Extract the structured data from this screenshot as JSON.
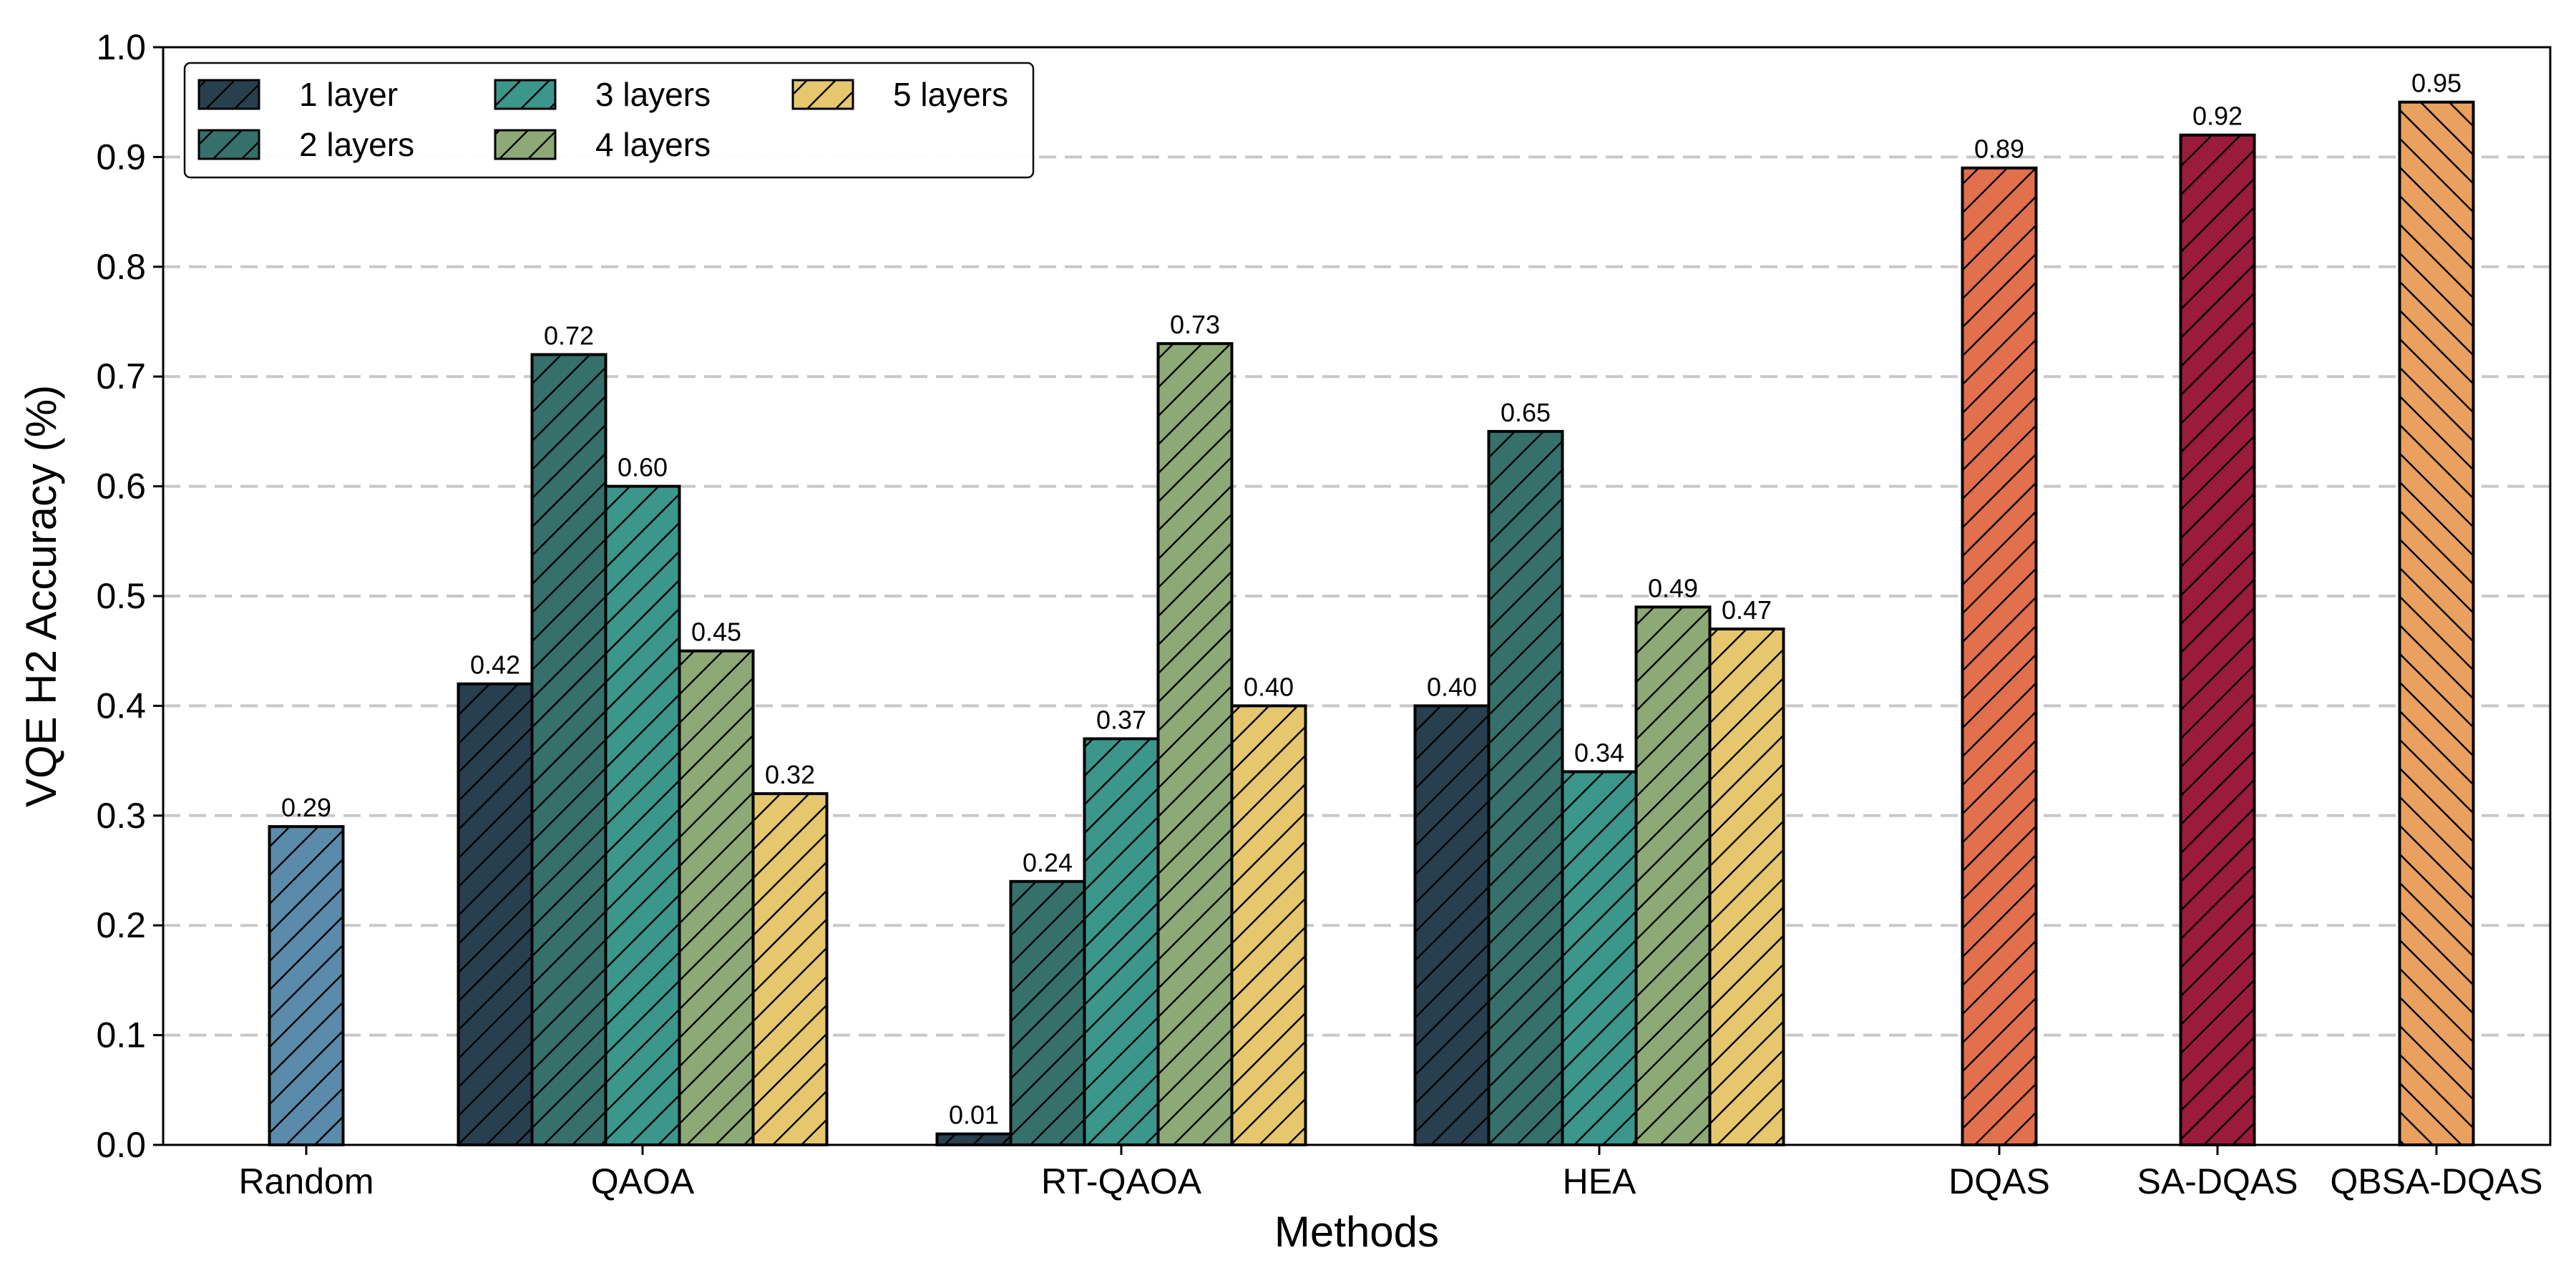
{
  "chart_data": {
    "type": "bar",
    "title": "",
    "xlabel": "Methods",
    "ylabel": "VQE H2 Accuracy (%)",
    "ylim": [
      0,
      1.0
    ],
    "yticks": [
      "0.0",
      "0.1",
      "0.2",
      "0.3",
      "0.4",
      "0.5",
      "0.6",
      "0.7",
      "0.8",
      "0.9",
      "1.0"
    ],
    "grid": "horizontal dashed",
    "legend_position": "top-left",
    "legend": [
      {
        "name": "1 layer",
        "color": "#273f4f"
      },
      {
        "name": "2 layers",
        "color": "#35706b"
      },
      {
        "name": "3 layers",
        "color": "#3b968b"
      },
      {
        "name": "4 layers",
        "color": "#8daa76"
      },
      {
        "name": "5 layers",
        "color": "#e6c76e"
      }
    ],
    "groups": [
      {
        "category": "Random",
        "bars": [
          {
            "value": 0.29,
            "label": "0.29",
            "color": "#5b8bab",
            "hatch": "/"
          }
        ]
      },
      {
        "category": "QAOA",
        "bars": [
          {
            "series": "1 layer",
            "value": 0.42,
            "label": "0.42"
          },
          {
            "series": "2 layers",
            "value": 0.72,
            "label": "0.72"
          },
          {
            "series": "3 layers",
            "value": 0.6,
            "label": "0.60"
          },
          {
            "series": "4 layers",
            "value": 0.45,
            "label": "0.45"
          },
          {
            "series": "5 layers",
            "value": 0.32,
            "label": "0.32"
          }
        ]
      },
      {
        "category": "RT-QAOA",
        "bars": [
          {
            "series": "1 layer",
            "value": 0.01,
            "label": "0.01"
          },
          {
            "series": "2 layers",
            "value": 0.24,
            "label": "0.24"
          },
          {
            "series": "3 layers",
            "value": 0.37,
            "label": "0.37"
          },
          {
            "series": "4 layers",
            "value": 0.73,
            "label": "0.73"
          },
          {
            "series": "5 layers",
            "value": 0.4,
            "label": "0.40"
          }
        ]
      },
      {
        "category": "HEA",
        "bars": [
          {
            "series": "1 layer",
            "value": 0.4,
            "label": "0.40"
          },
          {
            "series": "2 layers",
            "value": 0.65,
            "label": "0.65"
          },
          {
            "series": "3 layers",
            "value": 0.34,
            "label": "0.34"
          },
          {
            "series": "4 layers",
            "value": 0.49,
            "label": "0.49"
          },
          {
            "series": "5 layers",
            "value": 0.47,
            "label": "0.47"
          }
        ]
      },
      {
        "category": "DQAS",
        "bars": [
          {
            "value": 0.89,
            "label": "0.89",
            "color": "#e2704d",
            "hatch": "/"
          }
        ]
      },
      {
        "category": "SA-DQAS",
        "bars": [
          {
            "value": 0.92,
            "label": "0.92",
            "color": "#9a1b3b",
            "hatch": "/"
          }
        ]
      },
      {
        "category": "QBSA-DQAS",
        "bars": [
          {
            "value": 0.95,
            "label": "0.95",
            "color": "#eaa05f",
            "hatch": "\\"
          }
        ]
      }
    ]
  }
}
